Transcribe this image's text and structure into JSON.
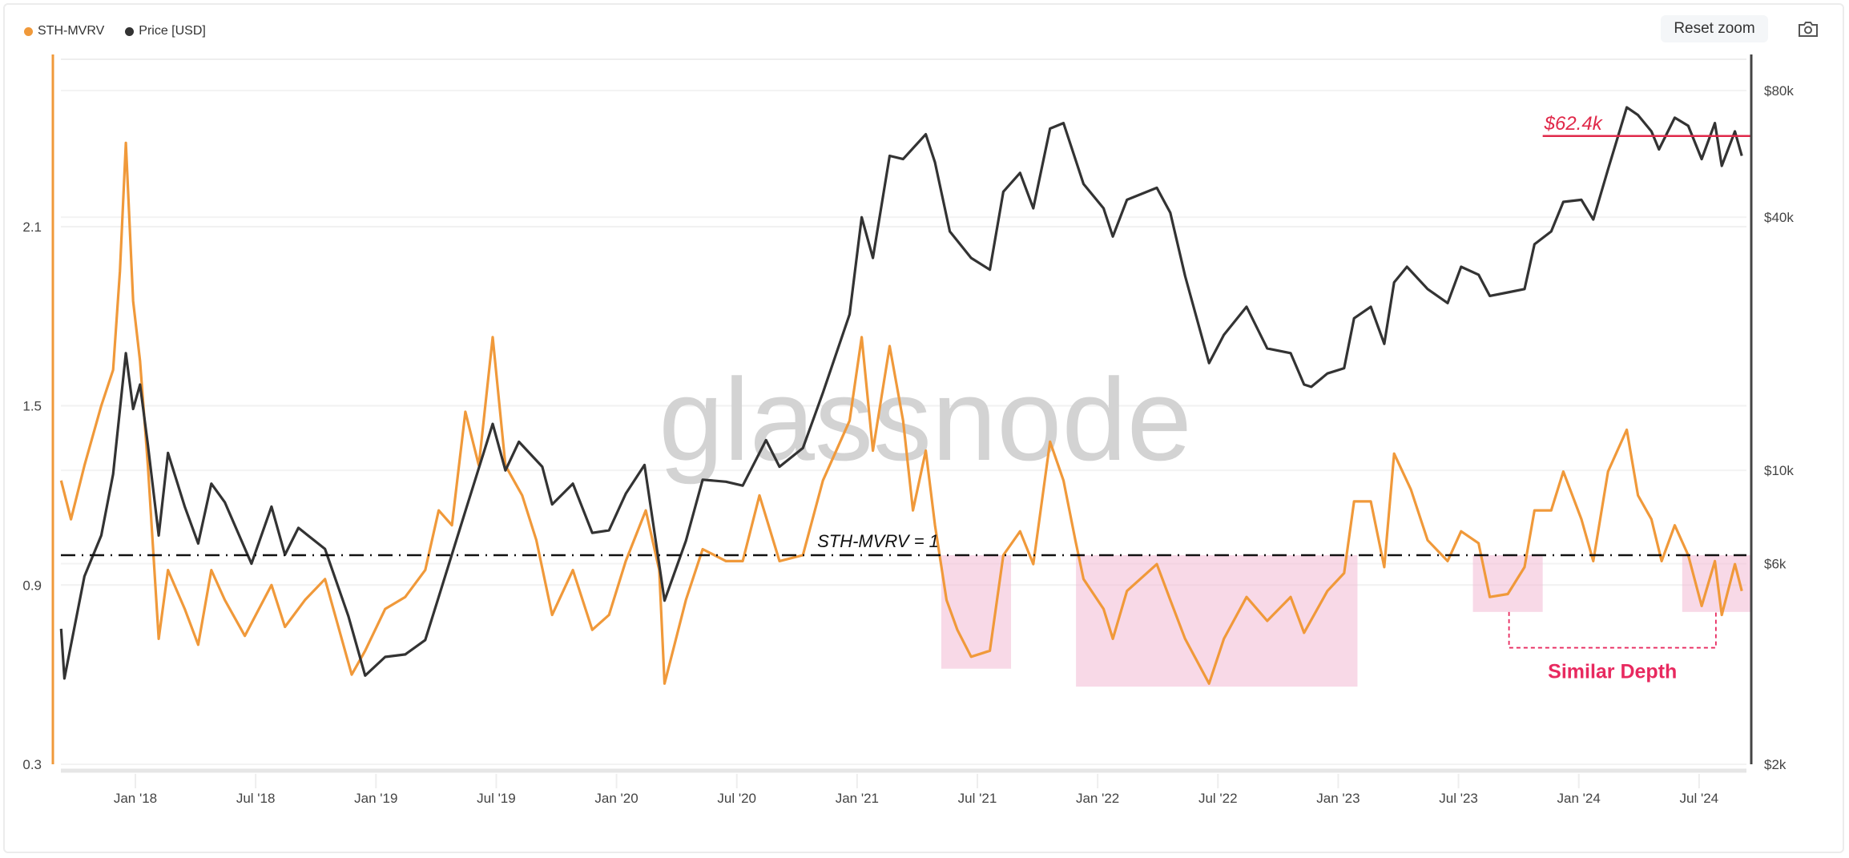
{
  "legend": {
    "items": [
      {
        "label": "STH-MVRV",
        "color": "#f0993a"
      },
      {
        "label": "Price [USD]",
        "color": "#333333"
      }
    ]
  },
  "toolbar": {
    "reset_zoom_label": "Reset zoom",
    "camera_icon": "camera-icon"
  },
  "watermark": "glassnode",
  "chart_data": {
    "type": "line",
    "title": "",
    "xlabel": "",
    "xlim": [
      2017.657,
      2024.717
    ],
    "x_ticks": [
      {
        "t": 2018.0,
        "label": "Jan '18"
      },
      {
        "t": 2018.5,
        "label": "Jul '18"
      },
      {
        "t": 2019.0,
        "label": "Jan '19"
      },
      {
        "t": 2019.5,
        "label": "Jul '19"
      },
      {
        "t": 2020.0,
        "label": "Jan '20"
      },
      {
        "t": 2020.5,
        "label": "Jul '20"
      },
      {
        "t": 2021.0,
        "label": "Jan '21"
      },
      {
        "t": 2021.5,
        "label": "Jul '21"
      },
      {
        "t": 2022.0,
        "label": "Jan '22"
      },
      {
        "t": 2022.5,
        "label": "Jul '22"
      },
      {
        "t": 2023.0,
        "label": "Jan '23"
      },
      {
        "t": 2023.5,
        "label": "Jul '23"
      },
      {
        "t": 2024.0,
        "label": "Jan '24"
      },
      {
        "t": 2024.5,
        "label": "Jul '24"
      }
    ],
    "y_left": {
      "label": "STH-MVRV",
      "scale": "linear",
      "ylim": [
        0.3,
        2.66
      ],
      "ticks": [
        {
          "v": 0.3,
          "label": "0.3"
        },
        {
          "v": 0.9,
          "label": "0.9"
        },
        {
          "v": 1.5,
          "label": "1.5"
        },
        {
          "v": 2.1,
          "label": "2.1"
        }
      ]
    },
    "y_right": {
      "label": "Price [USD]",
      "scale": "log",
      "ylim": [
        2000,
        95000
      ],
      "ticks": [
        {
          "v": 2000,
          "label": "$2k"
        },
        {
          "v": 6000,
          "label": "$6k"
        },
        {
          "v": 10000,
          "label": "$10k"
        },
        {
          "v": 40000,
          "label": "$40k"
        },
        {
          "v": 80000,
          "label": "$80k"
        }
      ]
    },
    "grid": true,
    "legend_position": "top-left",
    "series": [
      {
        "name": "STH-MVRV",
        "axis": "left",
        "color": "#f0993a",
        "points": [
          [
            "2017-09-10",
            1.25
          ],
          [
            "2017-09-25",
            1.12
          ],
          [
            "2017-10-15",
            1.3
          ],
          [
            "2017-11-10",
            1.5
          ],
          [
            "2017-11-28",
            1.62
          ],
          [
            "2017-12-08",
            1.95
          ],
          [
            "2017-12-17",
            2.38
          ],
          [
            "2017-12-28",
            1.85
          ],
          [
            "2018-01-08",
            1.65
          ],
          [
            "2018-01-20",
            1.3
          ],
          [
            "2018-02-06",
            0.72
          ],
          [
            "2018-02-20",
            0.95
          ],
          [
            "2018-03-15",
            0.82
          ],
          [
            "2018-04-05",
            0.7
          ],
          [
            "2018-04-25",
            0.95
          ],
          [
            "2018-05-15",
            0.85
          ],
          [
            "2018-06-15",
            0.73
          ],
          [
            "2018-07-25",
            0.9
          ],
          [
            "2018-08-15",
            0.76
          ],
          [
            "2018-09-15",
            0.85
          ],
          [
            "2018-10-15",
            0.92
          ],
          [
            "2018-11-25",
            0.6
          ],
          [
            "2018-12-15",
            0.68
          ],
          [
            "2019-01-15",
            0.82
          ],
          [
            "2019-02-15",
            0.86
          ],
          [
            "2019-03-15",
            0.95
          ],
          [
            "2019-04-05",
            1.15
          ],
          [
            "2019-04-25",
            1.1
          ],
          [
            "2019-05-15",
            1.48
          ],
          [
            "2019-06-05",
            1.3
          ],
          [
            "2019-06-26",
            1.73
          ],
          [
            "2019-07-15",
            1.3
          ],
          [
            "2019-08-10",
            1.2
          ],
          [
            "2019-09-01",
            1.05
          ],
          [
            "2019-09-25",
            0.8
          ],
          [
            "2019-10-26",
            0.95
          ],
          [
            "2019-11-25",
            0.75
          ],
          [
            "2019-12-20",
            0.8
          ],
          [
            "2020-01-15",
            0.98
          ],
          [
            "2020-02-15",
            1.15
          ],
          [
            "2020-03-05",
            0.95
          ],
          [
            "2020-03-13",
            0.57
          ],
          [
            "2020-04-15",
            0.85
          ],
          [
            "2020-05-10",
            1.02
          ],
          [
            "2020-06-15",
            0.98
          ],
          [
            "2020-07-10",
            0.98
          ],
          [
            "2020-08-05",
            1.2
          ],
          [
            "2020-09-05",
            0.98
          ],
          [
            "2020-10-10",
            1.0
          ],
          [
            "2020-11-10",
            1.25
          ],
          [
            "2020-12-20",
            1.45
          ],
          [
            "2021-01-08",
            1.73
          ],
          [
            "2021-01-25",
            1.35
          ],
          [
            "2021-02-20",
            1.7
          ],
          [
            "2021-03-10",
            1.45
          ],
          [
            "2021-03-25",
            1.15
          ],
          [
            "2021-04-14",
            1.35
          ],
          [
            "2021-04-28",
            1.1
          ],
          [
            "2021-05-15",
            0.85
          ],
          [
            "2021-06-01",
            0.75
          ],
          [
            "2021-06-22",
            0.66
          ],
          [
            "2021-07-20",
            0.68
          ],
          [
            "2021-08-10",
            1.0
          ],
          [
            "2021-09-05",
            1.08
          ],
          [
            "2021-09-25",
            0.97
          ],
          [
            "2021-10-20",
            1.38
          ],
          [
            "2021-11-10",
            1.25
          ],
          [
            "2021-11-28",
            1.05
          ],
          [
            "2021-12-10",
            0.92
          ],
          [
            "2022-01-10",
            0.82
          ],
          [
            "2022-01-24",
            0.72
          ],
          [
            "2022-02-15",
            0.88
          ],
          [
            "2022-03-30",
            0.97
          ],
          [
            "2022-04-20",
            0.85
          ],
          [
            "2022-05-12",
            0.72
          ],
          [
            "2022-06-18",
            0.57
          ],
          [
            "2022-07-10",
            0.72
          ],
          [
            "2022-08-14",
            0.86
          ],
          [
            "2022-09-15",
            0.78
          ],
          [
            "2022-10-20",
            0.86
          ],
          [
            "2022-11-10",
            0.74
          ],
          [
            "2022-12-15",
            0.88
          ],
          [
            "2023-01-10",
            0.94
          ],
          [
            "2023-01-25",
            1.18
          ],
          [
            "2023-02-20",
            1.18
          ],
          [
            "2023-03-10",
            0.96
          ],
          [
            "2023-03-25",
            1.34
          ],
          [
            "2023-04-20",
            1.22
          ],
          [
            "2023-05-15",
            1.05
          ],
          [
            "2023-06-15",
            0.98
          ],
          [
            "2023-07-05",
            1.08
          ],
          [
            "2023-08-01",
            1.04
          ],
          [
            "2023-08-18",
            0.86
          ],
          [
            "2023-09-15",
            0.87
          ],
          [
            "2023-10-10",
            0.96
          ],
          [
            "2023-10-25",
            1.15
          ],
          [
            "2023-11-20",
            1.15
          ],
          [
            "2023-12-08",
            1.28
          ],
          [
            "2024-01-05",
            1.12
          ],
          [
            "2024-01-23",
            0.98
          ],
          [
            "2024-02-15",
            1.28
          ],
          [
            "2024-03-13",
            1.42
          ],
          [
            "2024-03-30",
            1.2
          ],
          [
            "2024-04-20",
            1.12
          ],
          [
            "2024-05-05",
            0.98
          ],
          [
            "2024-05-25",
            1.1
          ],
          [
            "2024-06-15",
            1.0
          ],
          [
            "2024-07-05",
            0.83
          ],
          [
            "2024-07-25",
            0.98
          ],
          [
            "2024-08-05",
            0.8
          ],
          [
            "2024-08-25",
            0.97
          ],
          [
            "2024-09-05",
            0.88
          ]
        ]
      },
      {
        "name": "Price [USD]",
        "axis": "right",
        "color": "#333333",
        "points": [
          [
            "2017-09-10",
            4200
          ],
          [
            "2017-09-15",
            3200
          ],
          [
            "2017-10-15",
            5600
          ],
          [
            "2017-11-10",
            7000
          ],
          [
            "2017-11-28",
            9800
          ],
          [
            "2017-12-17",
            19000
          ],
          [
            "2017-12-28",
            14000
          ],
          [
            "2018-01-08",
            16000
          ],
          [
            "2018-01-20",
            11500
          ],
          [
            "2018-02-06",
            7000
          ],
          [
            "2018-02-20",
            11000
          ],
          [
            "2018-03-15",
            8200
          ],
          [
            "2018-04-05",
            6700
          ],
          [
            "2018-04-25",
            9300
          ],
          [
            "2018-05-15",
            8400
          ],
          [
            "2018-06-25",
            6000
          ],
          [
            "2018-07-25",
            8200
          ],
          [
            "2018-08-15",
            6300
          ],
          [
            "2018-09-05",
            7300
          ],
          [
            "2018-10-15",
            6500
          ],
          [
            "2018-11-20",
            4500
          ],
          [
            "2018-12-15",
            3250
          ],
          [
            "2019-01-15",
            3600
          ],
          [
            "2019-02-15",
            3650
          ],
          [
            "2019-03-15",
            3950
          ],
          [
            "2019-04-05",
            5000
          ],
          [
            "2019-05-15",
            8000
          ],
          [
            "2019-06-26",
            12900
          ],
          [
            "2019-07-15",
            10000
          ],
          [
            "2019-08-05",
            11700
          ],
          [
            "2019-09-10",
            10200
          ],
          [
            "2019-09-25",
            8300
          ],
          [
            "2019-10-26",
            9300
          ],
          [
            "2019-11-25",
            7100
          ],
          [
            "2019-12-20",
            7200
          ],
          [
            "2020-01-15",
            8800
          ],
          [
            "2020-02-13",
            10300
          ],
          [
            "2020-03-13",
            4900
          ],
          [
            "2020-04-15",
            6800
          ],
          [
            "2020-05-10",
            9500
          ],
          [
            "2020-06-15",
            9400
          ],
          [
            "2020-07-10",
            9200
          ],
          [
            "2020-08-15",
            11800
          ],
          [
            "2020-09-05",
            10200
          ],
          [
            "2020-10-10",
            11300
          ],
          [
            "2020-11-10",
            15300
          ],
          [
            "2020-12-20",
            23500
          ],
          [
            "2021-01-08",
            40000
          ],
          [
            "2021-01-25",
            32000
          ],
          [
            "2021-02-20",
            56000
          ],
          [
            "2021-03-10",
            55000
          ],
          [
            "2021-04-14",
            63000
          ],
          [
            "2021-04-28",
            54000
          ],
          [
            "2021-05-20",
            37000
          ],
          [
            "2021-06-22",
            32000
          ],
          [
            "2021-07-20",
            30000
          ],
          [
            "2021-08-10",
            46000
          ],
          [
            "2021-09-05",
            51000
          ],
          [
            "2021-09-25",
            42000
          ],
          [
            "2021-10-20",
            65000
          ],
          [
            "2021-11-10",
            67000
          ],
          [
            "2021-12-10",
            48000
          ],
          [
            "2022-01-10",
            42000
          ],
          [
            "2022-01-24",
            36000
          ],
          [
            "2022-02-15",
            44000
          ],
          [
            "2022-03-30",
            47000
          ],
          [
            "2022-04-20",
            41000
          ],
          [
            "2022-05-12",
            29000
          ],
          [
            "2022-06-18",
            18000
          ],
          [
            "2022-07-10",
            21000
          ],
          [
            "2022-08-14",
            24500
          ],
          [
            "2022-09-15",
            19500
          ],
          [
            "2022-10-20",
            19000
          ],
          [
            "2022-11-10",
            16000
          ],
          [
            "2022-11-21",
            15800
          ],
          [
            "2022-12-15",
            17000
          ],
          [
            "2023-01-10",
            17500
          ],
          [
            "2023-01-25",
            23000
          ],
          [
            "2023-02-20",
            24500
          ],
          [
            "2023-03-10",
            20000
          ],
          [
            "2023-03-25",
            28000
          ],
          [
            "2023-04-14",
            30500
          ],
          [
            "2023-05-15",
            27000
          ],
          [
            "2023-06-15",
            25000
          ],
          [
            "2023-07-05",
            30500
          ],
          [
            "2023-08-01",
            29200
          ],
          [
            "2023-08-18",
            26000
          ],
          [
            "2023-09-15",
            26500
          ],
          [
            "2023-10-10",
            27000
          ],
          [
            "2023-10-25",
            34500
          ],
          [
            "2023-11-20",
            37000
          ],
          [
            "2023-12-08",
            43500
          ],
          [
            "2024-01-05",
            44000
          ],
          [
            "2024-01-23",
            39500
          ],
          [
            "2024-02-15",
            52000
          ],
          [
            "2024-03-13",
            73000
          ],
          [
            "2024-03-30",
            70000
          ],
          [
            "2024-04-20",
            64000
          ],
          [
            "2024-05-01",
            58000
          ],
          [
            "2024-05-25",
            69000
          ],
          [
            "2024-06-15",
            66000
          ],
          [
            "2024-07-05",
            55000
          ],
          [
            "2024-07-25",
            67000
          ],
          [
            "2024-08-05",
            53000
          ],
          [
            "2024-08-25",
            64000
          ],
          [
            "2024-09-05",
            56000
          ]
        ]
      }
    ],
    "annotations": {
      "threshold": {
        "value": 1.0,
        "label": "STH-MVRV = 1"
      },
      "price_level": {
        "value": 62400,
        "label": "$62.4k",
        "from": 2023.85,
        "color": "#e0294a"
      },
      "shaded_regions": [
        {
          "from": 2021.35,
          "to": 2021.64,
          "low": 0.62
        },
        {
          "from": 2021.91,
          "to": 2023.08,
          "low": 0.56
        },
        {
          "from": 2023.56,
          "to": 2023.85,
          "low": 0.81
        },
        {
          "from": 2024.43,
          "to": 2024.72,
          "low": 0.81
        }
      ],
      "bracket": {
        "from": 2023.71,
        "to": 2024.57,
        "top": 0.81,
        "bottom": 0.69,
        "label": "Similar Depth",
        "color": "#e8295f"
      }
    }
  }
}
